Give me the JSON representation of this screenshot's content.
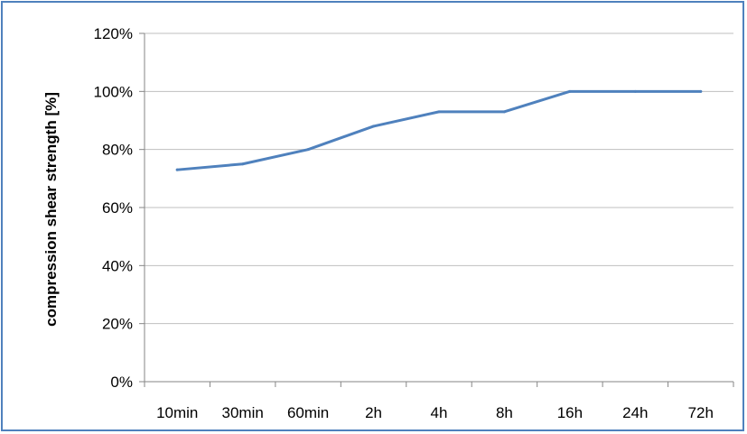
{
  "chart_data": {
    "type": "line",
    "title": "",
    "xlabel": "",
    "ylabel": "compression shear strength [%]",
    "categories": [
      "10min",
      "30min",
      "60min",
      "2h",
      "4h",
      "8h",
      "16h",
      "24h",
      "72h"
    ],
    "series": [
      {
        "values": [
          0.73,
          0.75,
          0.8,
          0.88,
          0.93,
          0.93,
          1.0,
          1.0,
          1.0
        ]
      }
    ],
    "ylim": [
      0,
      1.2
    ],
    "yticks": [
      "0%",
      "20%",
      "40%",
      "60%",
      "80%",
      "100%",
      "120%"
    ],
    "grid": "horizontal",
    "legend": "none",
    "colors": {
      "line": "#4f81bd",
      "frame": "#4f81bd",
      "grid": "#bfbfbf",
      "axis": "#868686"
    }
  }
}
